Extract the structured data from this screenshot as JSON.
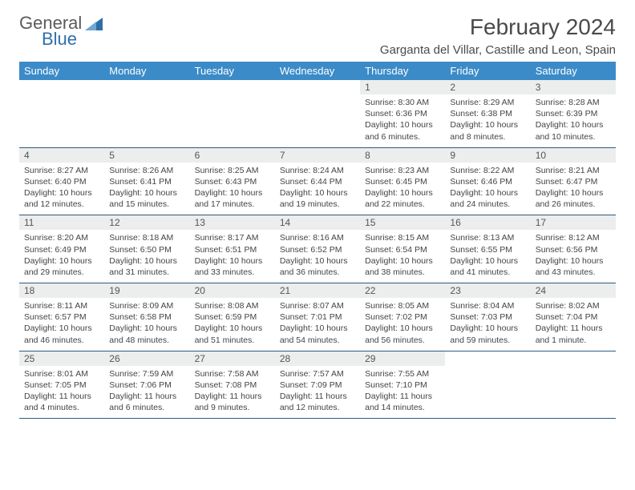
{
  "brand": {
    "part1": "General",
    "part2": "Blue"
  },
  "title": "February 2024",
  "location": "Garganta del Villar, Castille and Leon, Spain",
  "colors": {
    "header_bg": "#3b8bc8",
    "daynum_bg": "#eceded",
    "rule": "#2f5b7f",
    "brand_blue": "#2f6fa8"
  },
  "dayNames": [
    "Sunday",
    "Monday",
    "Tuesday",
    "Wednesday",
    "Thursday",
    "Friday",
    "Saturday"
  ],
  "weeks": [
    [
      null,
      null,
      null,
      null,
      {
        "n": "1",
        "sr": "8:30 AM",
        "ss": "6:36 PM",
        "dl": "10 hours and 6 minutes."
      },
      {
        "n": "2",
        "sr": "8:29 AM",
        "ss": "6:38 PM",
        "dl": "10 hours and 8 minutes."
      },
      {
        "n": "3",
        "sr": "8:28 AM",
        "ss": "6:39 PM",
        "dl": "10 hours and 10 minutes."
      }
    ],
    [
      {
        "n": "4",
        "sr": "8:27 AM",
        "ss": "6:40 PM",
        "dl": "10 hours and 12 minutes."
      },
      {
        "n": "5",
        "sr": "8:26 AM",
        "ss": "6:41 PM",
        "dl": "10 hours and 15 minutes."
      },
      {
        "n": "6",
        "sr": "8:25 AM",
        "ss": "6:43 PM",
        "dl": "10 hours and 17 minutes."
      },
      {
        "n": "7",
        "sr": "8:24 AM",
        "ss": "6:44 PM",
        "dl": "10 hours and 19 minutes."
      },
      {
        "n": "8",
        "sr": "8:23 AM",
        "ss": "6:45 PM",
        "dl": "10 hours and 22 minutes."
      },
      {
        "n": "9",
        "sr": "8:22 AM",
        "ss": "6:46 PM",
        "dl": "10 hours and 24 minutes."
      },
      {
        "n": "10",
        "sr": "8:21 AM",
        "ss": "6:47 PM",
        "dl": "10 hours and 26 minutes."
      }
    ],
    [
      {
        "n": "11",
        "sr": "8:20 AM",
        "ss": "6:49 PM",
        "dl": "10 hours and 29 minutes."
      },
      {
        "n": "12",
        "sr": "8:18 AM",
        "ss": "6:50 PM",
        "dl": "10 hours and 31 minutes."
      },
      {
        "n": "13",
        "sr": "8:17 AM",
        "ss": "6:51 PM",
        "dl": "10 hours and 33 minutes."
      },
      {
        "n": "14",
        "sr": "8:16 AM",
        "ss": "6:52 PM",
        "dl": "10 hours and 36 minutes."
      },
      {
        "n": "15",
        "sr": "8:15 AM",
        "ss": "6:54 PM",
        "dl": "10 hours and 38 minutes."
      },
      {
        "n": "16",
        "sr": "8:13 AM",
        "ss": "6:55 PM",
        "dl": "10 hours and 41 minutes."
      },
      {
        "n": "17",
        "sr": "8:12 AM",
        "ss": "6:56 PM",
        "dl": "10 hours and 43 minutes."
      }
    ],
    [
      {
        "n": "18",
        "sr": "8:11 AM",
        "ss": "6:57 PM",
        "dl": "10 hours and 46 minutes."
      },
      {
        "n": "19",
        "sr": "8:09 AM",
        "ss": "6:58 PM",
        "dl": "10 hours and 48 minutes."
      },
      {
        "n": "20",
        "sr": "8:08 AM",
        "ss": "6:59 PM",
        "dl": "10 hours and 51 minutes."
      },
      {
        "n": "21",
        "sr": "8:07 AM",
        "ss": "7:01 PM",
        "dl": "10 hours and 54 minutes."
      },
      {
        "n": "22",
        "sr": "8:05 AM",
        "ss": "7:02 PM",
        "dl": "10 hours and 56 minutes."
      },
      {
        "n": "23",
        "sr": "8:04 AM",
        "ss": "7:03 PM",
        "dl": "10 hours and 59 minutes."
      },
      {
        "n": "24",
        "sr": "8:02 AM",
        "ss": "7:04 PM",
        "dl": "11 hours and 1 minute."
      }
    ],
    [
      {
        "n": "25",
        "sr": "8:01 AM",
        "ss": "7:05 PM",
        "dl": "11 hours and 4 minutes."
      },
      {
        "n": "26",
        "sr": "7:59 AM",
        "ss": "7:06 PM",
        "dl": "11 hours and 6 minutes."
      },
      {
        "n": "27",
        "sr": "7:58 AM",
        "ss": "7:08 PM",
        "dl": "11 hours and 9 minutes."
      },
      {
        "n": "28",
        "sr": "7:57 AM",
        "ss": "7:09 PM",
        "dl": "11 hours and 12 minutes."
      },
      {
        "n": "29",
        "sr": "7:55 AM",
        "ss": "7:10 PM",
        "dl": "11 hours and 14 minutes."
      },
      null,
      null
    ]
  ],
  "labels": {
    "sunrise": "Sunrise:",
    "sunset": "Sunset:",
    "daylight": "Daylight:"
  }
}
